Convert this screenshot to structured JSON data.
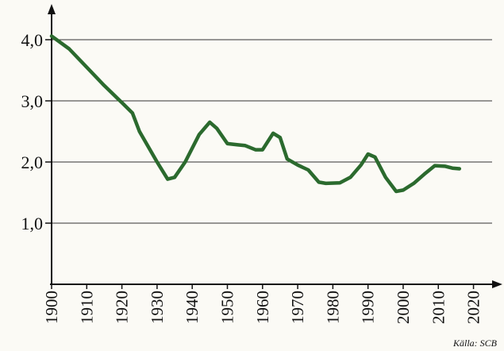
{
  "chart_data": {
    "type": "line",
    "source": "Källa: SCB",
    "x": [
      1900,
      1905,
      1910,
      1915,
      1920,
      1923,
      1925,
      1930,
      1933,
      1935,
      1938,
      1942,
      1945,
      1947,
      1950,
      1953,
      1955,
      1958,
      1960,
      1963,
      1965,
      1967,
      1970,
      1973,
      1976,
      1978,
      1982,
      1985,
      1988,
      1990,
      1992,
      1995,
      1998,
      2000,
      2003,
      2006,
      2009,
      2012,
      2014,
      2016
    ],
    "values": [
      4.06,
      3.85,
      3.55,
      3.25,
      2.97,
      2.8,
      2.5,
      2.0,
      1.72,
      1.75,
      2.0,
      2.45,
      2.65,
      2.55,
      2.3,
      2.28,
      2.27,
      2.2,
      2.2,
      2.47,
      2.4,
      2.05,
      1.95,
      1.87,
      1.67,
      1.65,
      1.66,
      1.75,
      1.95,
      2.13,
      2.08,
      1.75,
      1.52,
      1.54,
      1.65,
      1.8,
      1.94,
      1.93,
      1.9,
      1.89
    ],
    "color": "#2b6a2e",
    "xlim": [
      1900,
      2028
    ],
    "ylim": [
      0,
      4.5
    ],
    "xticks": [
      1900,
      1910,
      1920,
      1930,
      1940,
      1950,
      1960,
      1970,
      1980,
      1990,
      2000,
      2010,
      2020
    ],
    "yticks": [
      {
        "value": 1,
        "label": "1,0"
      },
      {
        "value": 2,
        "label": "2,0"
      },
      {
        "value": 3,
        "label": "3,0"
      },
      {
        "value": 4,
        "label": "4,0"
      }
    ],
    "grid": true
  }
}
